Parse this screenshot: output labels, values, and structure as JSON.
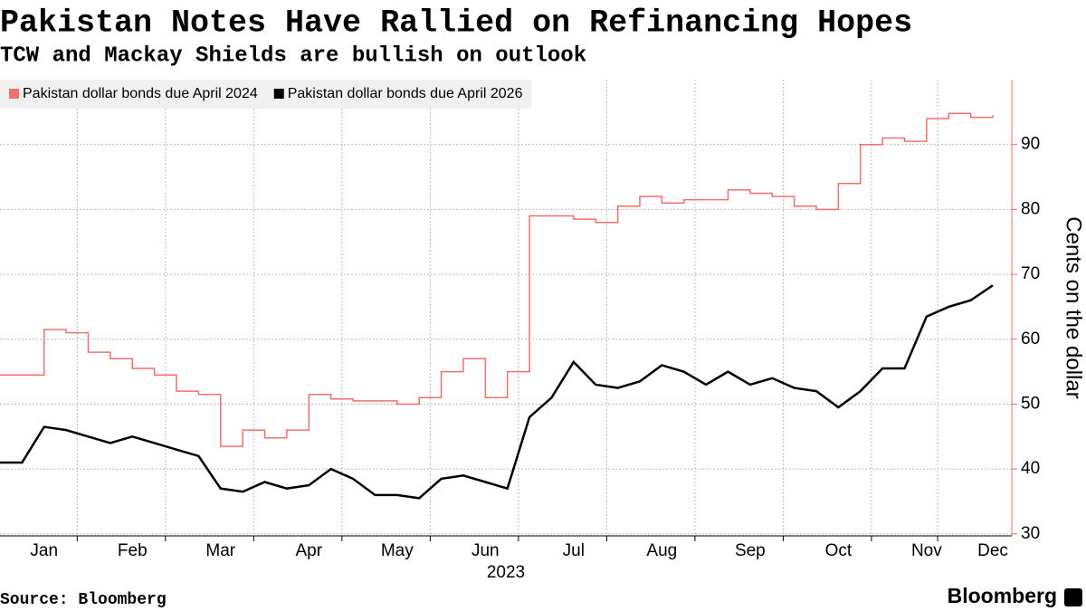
{
  "chart_data": {
    "type": "line",
    "title": "Pakistan Notes Have Rallied on Refinancing Hopes",
    "subtitle": "TCW and Mackay Shields are bullish on outlook",
    "source": "Source: Bloomberg",
    "logo": "Bloomberg",
    "y_label": "Cents on the dollar",
    "x_label": "2023",
    "categories": [
      null,
      null,
      "Jan",
      null,
      null,
      null,
      "Feb",
      null,
      null,
      null,
      "Mar",
      null,
      null,
      null,
      "Apr",
      null,
      null,
      null,
      "May",
      null,
      null,
      null,
      "Jun",
      null,
      null,
      null,
      "Jul",
      null,
      null,
      null,
      "Aug",
      null,
      null,
      null,
      "Sep",
      null,
      null,
      null,
      "Oct",
      null,
      null,
      null,
      "Nov",
      null,
      null,
      "Dec"
    ],
    "series": [
      {
        "name": "Pakistan dollar bonds due April 2024",
        "color": "#f0706c",
        "step": true,
        "values": [
          54.5,
          54.5,
          61.5,
          61,
          58,
          57,
          55.5,
          54.5,
          52,
          51.5,
          43.5,
          46,
          44.8,
          46,
          51.5,
          50.8,
          50.5,
          50.5,
          50,
          51,
          55,
          57,
          51,
          55,
          79,
          79,
          78.5,
          78,
          80.5,
          82,
          81,
          81.5,
          81.5,
          83,
          82.5,
          82,
          80.5,
          80,
          84,
          90,
          91,
          90.5,
          94,
          94.8,
          94.2,
          94.5
        ]
      },
      {
        "name": "Pakistan dollar bonds due April 2026",
        "color": "#000000",
        "step": false,
        "values": [
          41,
          41,
          46.5,
          46,
          45,
          44,
          45,
          44,
          43,
          42,
          37,
          36.5,
          38,
          37,
          37.5,
          40,
          38.5,
          36,
          36,
          35.5,
          38.5,
          39,
          38,
          37,
          48,
          51,
          56.5,
          53,
          52.5,
          53.5,
          56,
          55,
          53,
          55,
          53,
          54,
          52.5,
          52,
          49.5,
          52,
          55.5,
          55.5,
          63.5,
          65,
          66,
          68.3
        ]
      }
    ],
    "ylim": [
      29.7,
      100
    ],
    "yticks": [
      30,
      40,
      50,
      60,
      70,
      80,
      90
    ],
    "grid": true,
    "legend": "top-left",
    "axis_color": "#f0706c"
  }
}
